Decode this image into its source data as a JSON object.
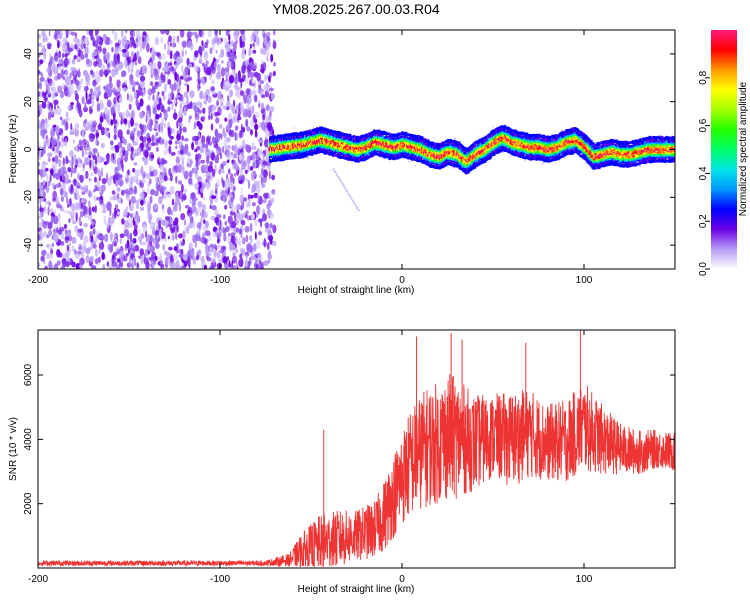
{
  "title": "YM08.2025.267.00.03.R04",
  "chart_data": [
    {
      "type": "heatmap",
      "name": "spectrogram",
      "xlabel": "Height of straight line (km)",
      "ylabel": "Frequency (Hz)",
      "xlim": [
        -200,
        150
      ],
      "ylim": [
        -50,
        50
      ],
      "xticks": [
        -200,
        -100,
        0,
        100
      ],
      "yticks": [
        -40,
        -20,
        0,
        20,
        40
      ],
      "noise_region_x": [
        -200,
        -73
      ],
      "signal_start_x": -73,
      "ridge": {
        "x": [
          -73,
          -65,
          -55,
          -50,
          -45,
          -40,
          -35,
          -30,
          -25,
          -20,
          -15,
          -10,
          -5,
          0,
          5,
          10,
          15,
          20,
          25,
          30,
          35,
          40,
          45,
          50,
          55,
          60,
          65,
          70,
          75,
          80,
          85,
          90,
          95,
          100,
          105,
          110,
          115,
          120,
          125,
          130,
          135,
          140,
          145,
          150
        ],
        "y": [
          0,
          1,
          2,
          3,
          4,
          3,
          2,
          1,
          0,
          1,
          3,
          2,
          1,
          2,
          1,
          0,
          -2,
          -3,
          -1,
          -2,
          -5,
          -2,
          0,
          3,
          5,
          3,
          2,
          1,
          1,
          0,
          1,
          3,
          4,
          1,
          -3,
          -2,
          -1,
          -2,
          -2,
          -1,
          0,
          0,
          0,
          0
        ]
      },
      "colorbar": {
        "label": "Normalized spectral amplitude",
        "range": [
          0,
          1
        ],
        "ticks": [
          0.0,
          0.2,
          0.4,
          0.6,
          0.8
        ],
        "tick_labels": [
          "0.0",
          "0.2",
          "0.4",
          "0.6",
          "0.8"
        ],
        "stops": [
          "#ffffff",
          "#b89af6",
          "#6a00e6",
          "#0000ff",
          "#0098ff",
          "#00e6e6",
          "#00ff66",
          "#22ff00",
          "#a8ff00",
          "#ffff00",
          "#ff9900",
          "#ff0000",
          "#ff1a7a"
        ]
      }
    },
    {
      "type": "line",
      "name": "snr",
      "color": "#ee3333",
      "xlabel": "Height of straight line (km)",
      "ylabel": "SNR (10 * v/v)",
      "xlim": [
        -200,
        150
      ],
      "ylim": [
        0,
        7400
      ],
      "xticks": [
        -200,
        -100,
        0,
        100
      ],
      "yticks": [
        2000,
        4000,
        6000
      ],
      "envelope": {
        "x": [
          -200,
          -150,
          -100,
          -75,
          -62,
          -55,
          -45,
          -35,
          -25,
          -15,
          -10,
          -5,
          0,
          5,
          10,
          15,
          20,
          25,
          30,
          40,
          50,
          60,
          70,
          80,
          90,
          100,
          110,
          120,
          130,
          140,
          150
        ],
        "mean": [
          150,
          150,
          150,
          150,
          250,
          500,
          750,
          900,
          1000,
          1200,
          1600,
          2200,
          2800,
          3300,
          3600,
          3800,
          3900,
          4100,
          4050,
          3900,
          4100,
          4000,
          4200,
          3900,
          3950,
          4400,
          4000,
          3700,
          3600,
          3700,
          3600
        ],
        "spread": [
          80,
          80,
          80,
          80,
          200,
          600,
          900,
          900,
          800,
          900,
          1100,
          1300,
          1500,
          1700,
          1800,
          1900,
          1900,
          2000,
          1900,
          1500,
          1300,
          1500,
          1400,
          1200,
          1300,
          1400,
          1100,
          800,
          700,
          600,
          600
        ]
      },
      "peaks": [
        {
          "x": -43,
          "y": 4300
        },
        {
          "x": 8,
          "y": 7200
        },
        {
          "x": 27,
          "y": 7300
        },
        {
          "x": 33,
          "y": 7100
        },
        {
          "x": 68,
          "y": 7000
        },
        {
          "x": 98,
          "y": 7400
        }
      ]
    }
  ]
}
